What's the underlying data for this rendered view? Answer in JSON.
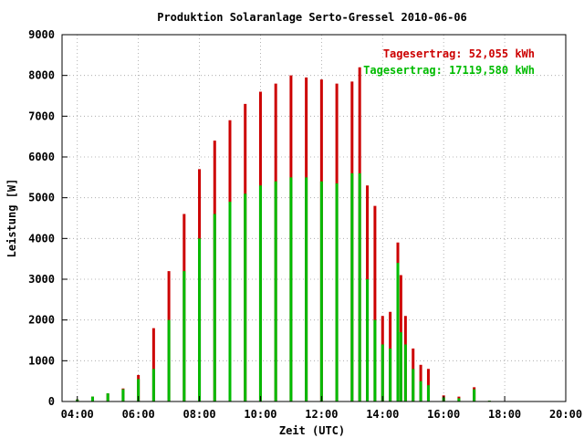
{
  "chart_data": {
    "type": "bar",
    "title": "Produktion Solaranlage Serto-Gressel 2010-06-06",
    "xlabel": "Zeit (UTC)",
    "ylabel": "Leistung [W]",
    "xlim": [
      3.5,
      20.0
    ],
    "ylim": [
      0,
      9000
    ],
    "x_ticks": [
      "04:00",
      "06:00",
      "08:00",
      "10:00",
      "12:00",
      "14:00",
      "16:00",
      "18:00",
      "20:00"
    ],
    "y_ticks": [
      "0",
      "1000",
      "2000",
      "3000",
      "4000",
      "5000",
      "6000",
      "7000",
      "8000",
      "9000"
    ],
    "grid": true,
    "annotations": [
      {
        "text": "Tagesertrag: 52,055 kWh",
        "color": "#cc0000",
        "placement": "top-right"
      },
      {
        "text": "Tagesertrag: 17119,580 kWh",
        "color": "#00bb00",
        "placement": "top-right"
      }
    ],
    "series": [
      {
        "color": "#cc0000",
        "x": [
          4.0,
          4.5,
          5.0,
          5.5,
          6.0,
          6.5,
          7.0,
          7.5,
          8.0,
          8.5,
          9.0,
          9.5,
          10.0,
          10.5,
          11.0,
          11.5,
          12.0,
          12.5,
          13.0,
          13.25,
          13.5,
          13.75,
          14.0,
          14.25,
          14.5,
          14.6,
          14.75,
          15.0,
          15.25,
          15.5,
          16.0,
          16.5,
          17.0,
          17.5
        ],
        "values": [
          50,
          120,
          200,
          320,
          650,
          1800,
          3200,
          4600,
          5700,
          6400,
          6900,
          7300,
          7600,
          7800,
          8000,
          7950,
          7900,
          7800,
          7850,
          8200,
          5300,
          4800,
          2100,
          2200,
          3900,
          3100,
          2100,
          1300,
          900,
          800,
          150,
          120,
          350,
          20
        ]
      },
      {
        "color": "#00bb00",
        "x": [
          4.0,
          4.5,
          5.0,
          5.5,
          6.0,
          6.5,
          7.0,
          7.5,
          8.0,
          8.5,
          9.0,
          9.5,
          10.0,
          10.5,
          11.0,
          11.5,
          12.0,
          12.5,
          13.0,
          13.25,
          13.5,
          13.75,
          14.0,
          14.25,
          14.5,
          14.6,
          14.75,
          15.0,
          15.25,
          15.5,
          16.0,
          16.5,
          17.0,
          17.5
        ],
        "values": [
          50,
          120,
          200,
          300,
          550,
          800,
          2000,
          3200,
          4000,
          4600,
          4900,
          5100,
          5300,
          5400,
          5500,
          5500,
          5400,
          5350,
          5600,
          5600,
          3000,
          2000,
          1400,
          1300,
          3400,
          1700,
          1400,
          800,
          500,
          400,
          100,
          80,
          300,
          20
        ]
      }
    ]
  }
}
